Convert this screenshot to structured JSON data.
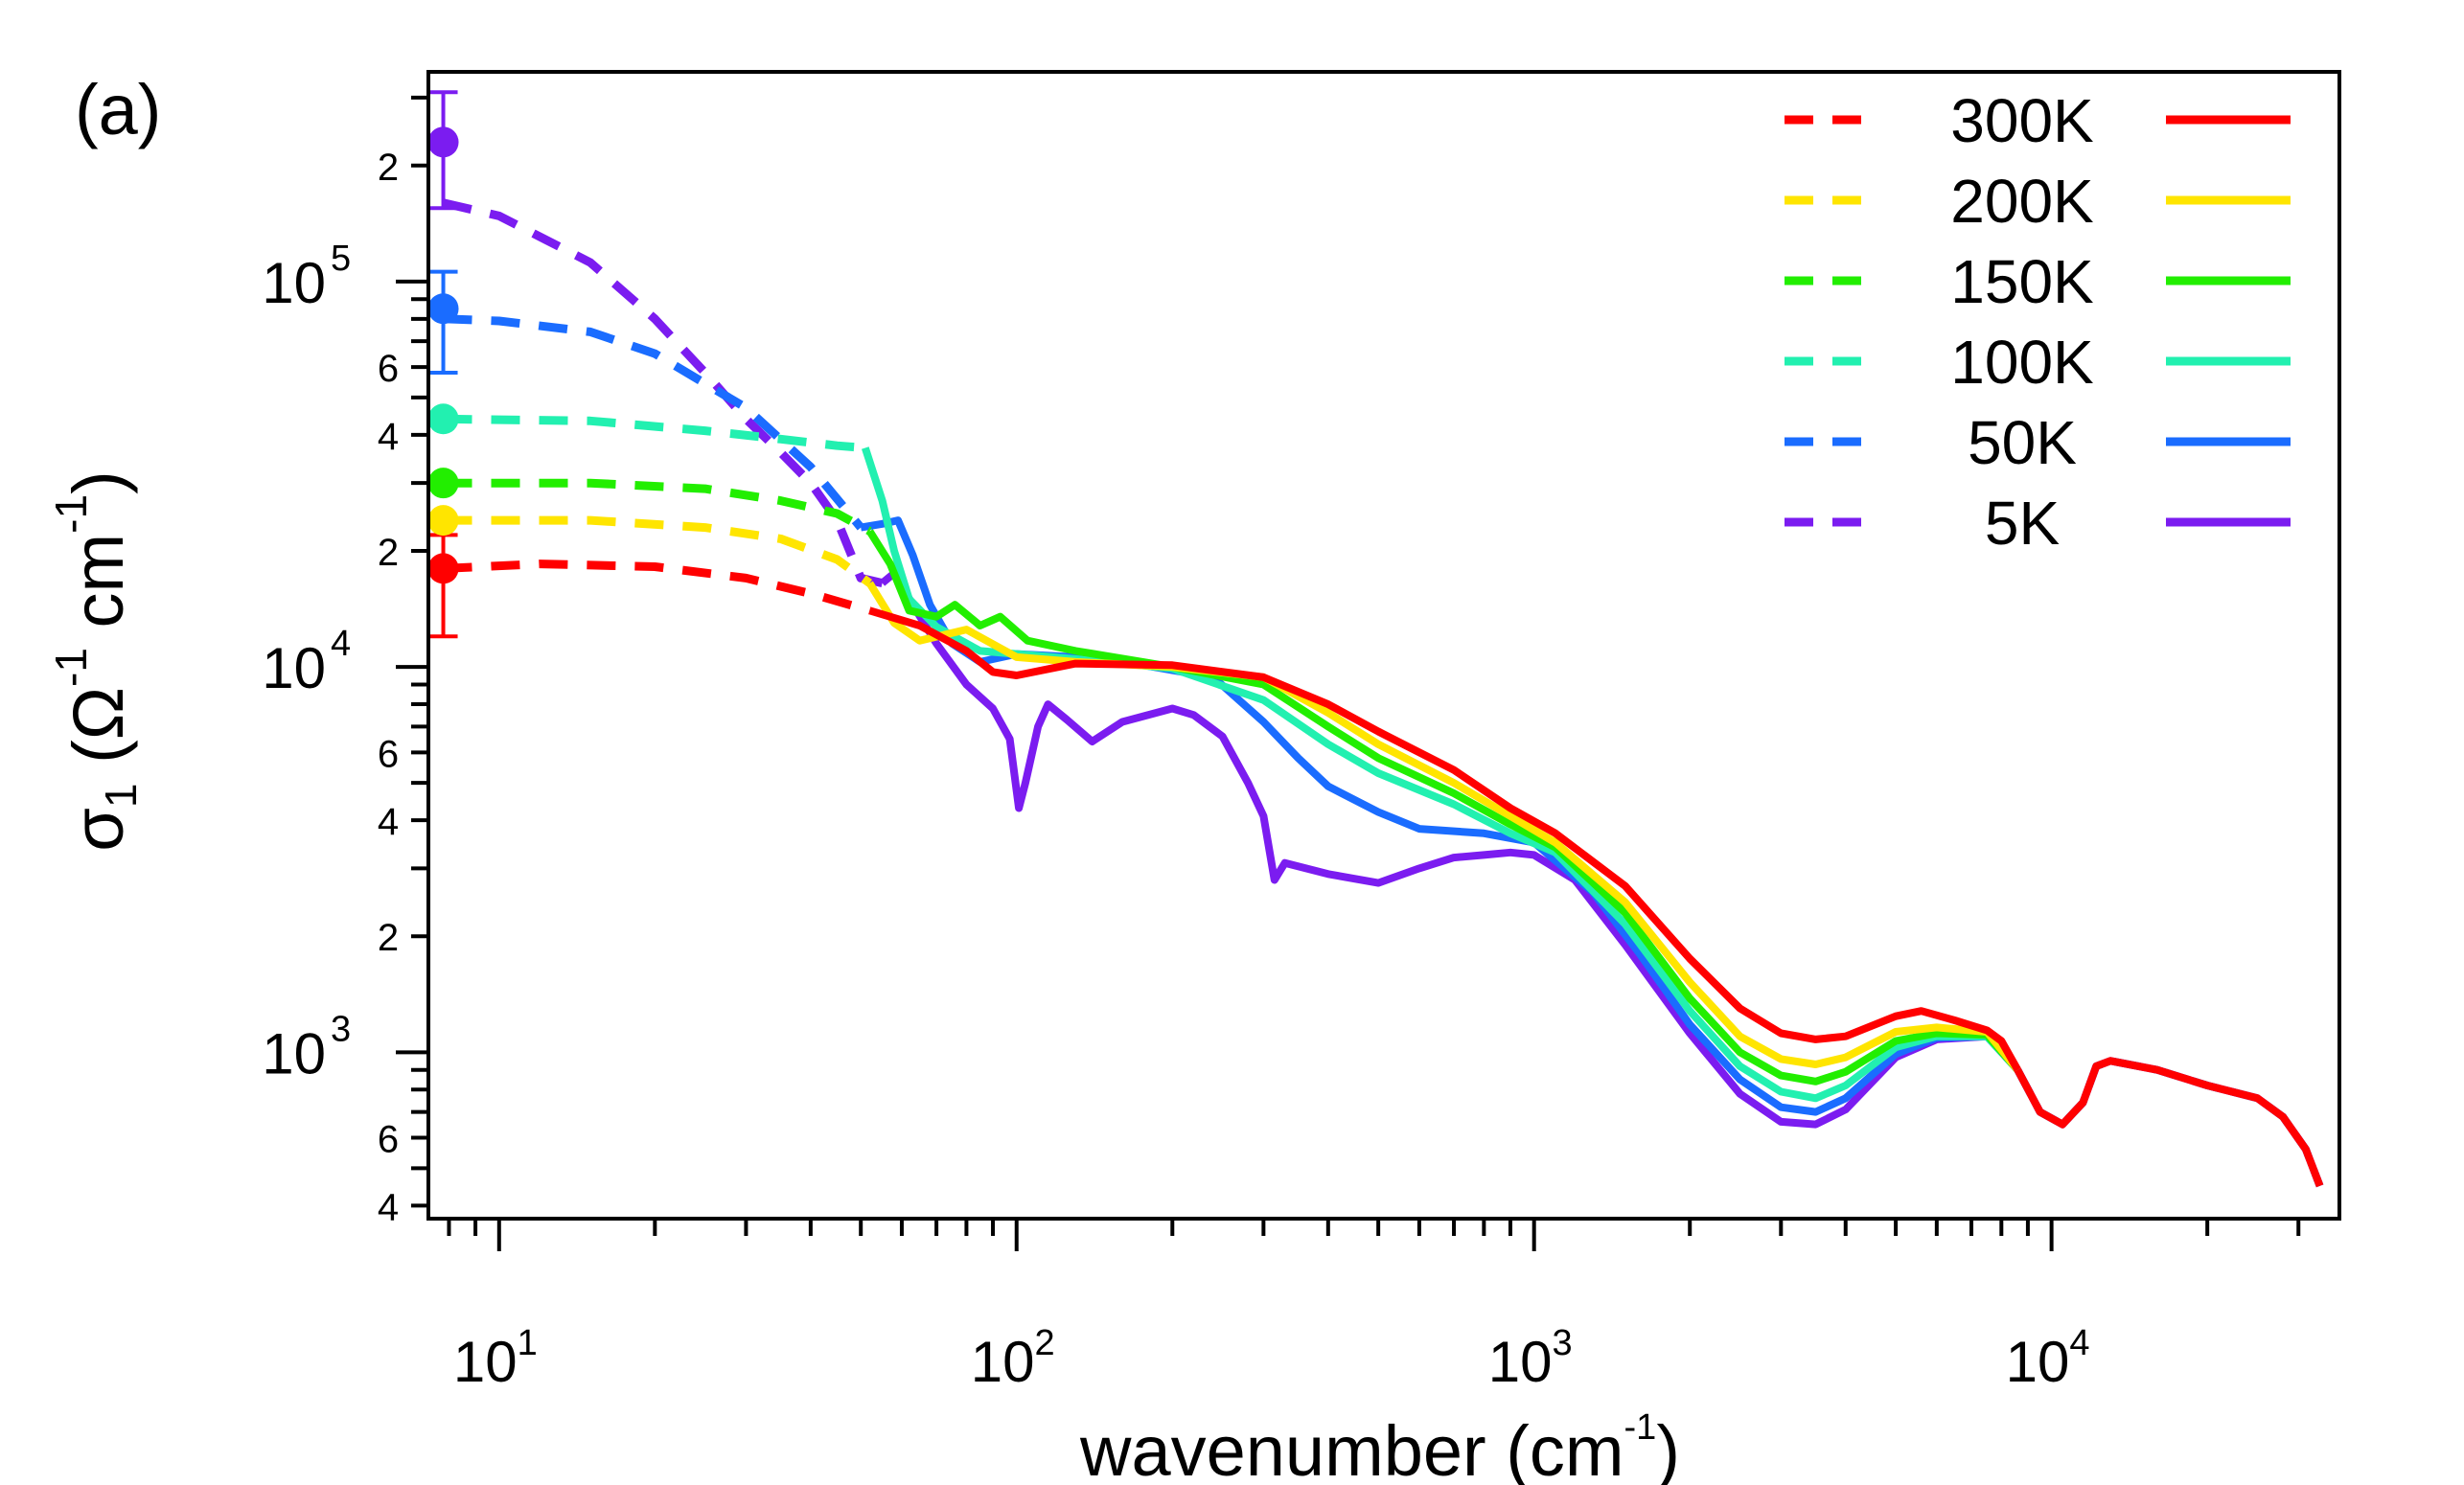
{
  "chart_data": {
    "type": "line",
    "panel_label": "(a)",
    "xscale": "log",
    "yscale": "log",
    "xlim": [
      7.3,
      36000
    ],
    "ylim": [
      370,
      350000
    ],
    "xlabel": {
      "base": "wavenumber (cm",
      "exponent": "-1",
      "close": ")"
    },
    "ylabel": {
      "symbol": "σ",
      "subscript": "1",
      "text": " (Ω",
      "exp1": "-1",
      "mid": " cm",
      "exp2": "-1",
      "close": ")"
    },
    "x_major_ticks": [
      {
        "value": 10,
        "base": "10",
        "exp": "1"
      },
      {
        "value": 100,
        "base": "10",
        "exp": "2"
      },
      {
        "value": 1000,
        "base": "10",
        "exp": "3"
      },
      {
        "value": 10000,
        "base": "10",
        "exp": "4"
      }
    ],
    "y_major_ticks": [
      {
        "value": 1000,
        "base": "10",
        "exp": "3"
      },
      {
        "value": 10000,
        "base": "10",
        "exp": "4"
      },
      {
        "value": 100000,
        "base": "10",
        "exp": "5"
      }
    ],
    "y_minor_labels": [
      {
        "value": 400,
        "label": "4"
      },
      {
        "value": 600,
        "label": "6"
      },
      {
        "value": 2000,
        "label": "2"
      },
      {
        "value": 4000,
        "label": "4"
      },
      {
        "value": 6000,
        "label": "6"
      },
      {
        "value": 20000,
        "label": "2"
      },
      {
        "value": 40000,
        "label": "4"
      },
      {
        "value": 60000,
        "label": "6"
      },
      {
        "value": 200000,
        "label": "2"
      }
    ],
    "legend_position": "top-right",
    "series": [
      {
        "name": "300K",
        "color": "#ff0000",
        "dc_point": {
          "x": 7.8,
          "y": 18000,
          "err_low": 12000,
          "err_high": 22000
        },
        "extrapolation": [
          [
            7.8,
            18000
          ],
          [
            12,
            18500
          ],
          [
            20,
            18200
          ],
          [
            30,
            17000
          ],
          [
            40,
            15500
          ],
          [
            52,
            14000
          ]
        ],
        "measured": [
          [
            52,
            14000
          ],
          [
            65,
            12800
          ],
          [
            80,
            11000
          ],
          [
            90,
            9700
          ],
          [
            100,
            9500
          ],
          [
            130,
            10200
          ],
          [
            200,
            10100
          ],
          [
            300,
            9400
          ],
          [
            400,
            8000
          ],
          [
            500,
            6800
          ],
          [
            700,
            5400
          ],
          [
            900,
            4300
          ],
          [
            1100,
            3700
          ],
          [
            1500,
            2700
          ],
          [
            2000,
            1750
          ],
          [
            2500,
            1300
          ],
          [
            3000,
            1120
          ],
          [
            3500,
            1080
          ],
          [
            4000,
            1100
          ],
          [
            5000,
            1240
          ],
          [
            5600,
            1280
          ],
          [
            6500,
            1210
          ],
          [
            7500,
            1140
          ],
          [
            8000,
            1070
          ],
          [
            8600,
            900
          ]
        ],
        "uv": [
          [
            8600,
            900
          ],
          [
            9500,
            700
          ],
          [
            10500,
            650
          ],
          [
            11500,
            740
          ],
          [
            12200,
            920
          ],
          [
            13000,
            950
          ],
          [
            16000,
            900
          ],
          [
            20000,
            820
          ],
          [
            25000,
            760
          ],
          [
            28000,
            680
          ],
          [
            31000,
            560
          ],
          [
            33000,
            450
          ]
        ]
      },
      {
        "name": "200K",
        "color": "#ffe500",
        "dc_point": {
          "x": 7.8,
          "y": 24000
        },
        "extrapolation": [
          [
            7.8,
            24000
          ],
          [
            15,
            24000
          ],
          [
            25,
            23000
          ],
          [
            35,
            21500
          ],
          [
            45,
            19000
          ],
          [
            52,
            16500
          ]
        ],
        "measured": [
          [
            52,
            16500
          ],
          [
            58,
            13000
          ],
          [
            65,
            11700
          ],
          [
            80,
            12500
          ],
          [
            100,
            10600
          ],
          [
            130,
            10300
          ],
          [
            200,
            10000
          ],
          [
            300,
            9400
          ],
          [
            400,
            7600
          ],
          [
            500,
            6300
          ],
          [
            700,
            5000
          ],
          [
            900,
            4100
          ],
          [
            1100,
            3500
          ],
          [
            1500,
            2450
          ],
          [
            2000,
            1520
          ],
          [
            2500,
            1100
          ],
          [
            3000,
            960
          ],
          [
            3500,
            930
          ],
          [
            4000,
            970
          ],
          [
            5000,
            1130
          ],
          [
            6000,
            1160
          ],
          [
            7500,
            1130
          ],
          [
            8600,
            900
          ]
        ],
        "uv": null
      },
      {
        "name": "150K",
        "color": "#22ee00",
        "dc_point": {
          "x": 7.8,
          "y": 30000
        },
        "extrapolation": [
          [
            7.8,
            30000
          ],
          [
            15,
            30000
          ],
          [
            25,
            29000
          ],
          [
            35,
            27000
          ],
          [
            45,
            25000
          ],
          [
            52,
            22500
          ]
        ],
        "measured": [
          [
            52,
            22500
          ],
          [
            57,
            18500
          ],
          [
            62,
            14000
          ],
          [
            70,
            13500
          ],
          [
            76,
            14500
          ],
          [
            85,
            12800
          ],
          [
            93,
            13500
          ],
          [
            105,
            11700
          ],
          [
            130,
            11000
          ],
          [
            200,
            10000
          ],
          [
            300,
            9000
          ],
          [
            400,
            7000
          ],
          [
            500,
            5800
          ],
          [
            700,
            4700
          ],
          [
            900,
            3900
          ],
          [
            1100,
            3400
          ],
          [
            1500,
            2300
          ],
          [
            2000,
            1380
          ],
          [
            2500,
            1000
          ],
          [
            3000,
            870
          ],
          [
            3500,
            840
          ],
          [
            4000,
            890
          ],
          [
            5000,
            1070
          ],
          [
            6000,
            1120
          ],
          [
            7500,
            1110
          ],
          [
            8600,
            900
          ]
        ],
        "uv": null
      },
      {
        "name": "100K",
        "color": "#22f0b0",
        "dc_point": {
          "x": 7.8,
          "y": 44000
        },
        "extrapolation": [
          [
            7.8,
            44000
          ],
          [
            15,
            43500
          ],
          [
            25,
            41000
          ],
          [
            35,
            39000
          ],
          [
            45,
            37500
          ],
          [
            51,
            37000
          ]
        ],
        "measured": [
          [
            51,
            37000
          ],
          [
            55,
            27000
          ],
          [
            58,
            20000
          ],
          [
            62,
            15000
          ],
          [
            70,
            12700
          ],
          [
            85,
            11000
          ],
          [
            100,
            10800
          ],
          [
            150,
            10300
          ],
          [
            200,
            9900
          ],
          [
            300,
            8200
          ],
          [
            400,
            6300
          ],
          [
            500,
            5300
          ],
          [
            700,
            4400
          ],
          [
            900,
            3700
          ],
          [
            1100,
            3300
          ],
          [
            1500,
            2150
          ],
          [
            2000,
            1280
          ],
          [
            2500,
            920
          ],
          [
            3000,
            790
          ],
          [
            3500,
            760
          ],
          [
            4000,
            820
          ],
          [
            5000,
            1030
          ],
          [
            6000,
            1100
          ],
          [
            7500,
            1100
          ],
          [
            8600,
            900
          ]
        ],
        "uv": null
      },
      {
        "name": "50K",
        "color": "#1a6cff",
        "dc_point": {
          "x": 7.8,
          "y": 85000,
          "err_low": 58000,
          "err_high": 106000
        },
        "extrapolation": [
          [
            7.8,
            80000
          ],
          [
            10,
            79000
          ],
          [
            15,
            74000
          ],
          [
            20,
            65000
          ],
          [
            30,
            47000
          ],
          [
            40,
            33000
          ],
          [
            50,
            23000
          ]
        ],
        "measured": [
          [
            50,
            23000
          ],
          [
            55,
            23500
          ],
          [
            59,
            24000
          ],
          [
            63,
            19500
          ],
          [
            68,
            14500
          ],
          [
            75,
            11500
          ],
          [
            85,
            10300
          ],
          [
            100,
            10800
          ],
          [
            150,
            10500
          ],
          [
            200,
            9800
          ],
          [
            240,
            9400
          ],
          [
            300,
            7200
          ],
          [
            350,
            5800
          ],
          [
            400,
            4900
          ],
          [
            500,
            4200
          ],
          [
            600,
            3800
          ],
          [
            800,
            3700
          ],
          [
            1000,
            3500
          ],
          [
            1300,
            2600
          ],
          [
            1600,
            1800
          ],
          [
            2000,
            1180
          ],
          [
            2500,
            850
          ],
          [
            3000,
            720
          ],
          [
            3500,
            700
          ],
          [
            4000,
            760
          ],
          [
            5000,
            990
          ],
          [
            6000,
            1090
          ],
          [
            7500,
            1100
          ],
          [
            8600,
            900
          ]
        ],
        "uv": [
          [
            8600,
            900
          ],
          [
            9500,
            700
          ],
          [
            10500,
            650
          ],
          [
            11500,
            740
          ],
          [
            12200,
            920
          ],
          [
            13000,
            950
          ],
          [
            16000,
            900
          ],
          [
            20000,
            820
          ],
          [
            25000,
            760
          ],
          [
            28000,
            680
          ],
          [
            31000,
            560
          ],
          [
            33000,
            450
          ]
        ]
      },
      {
        "name": "5K",
        "color": "#7b1cf0",
        "dc_point": {
          "x": 7.8,
          "y": 230000,
          "err_low": 155000,
          "err_high": 310000
        },
        "extrapolation": [
          [
            7.8,
            160000
          ],
          [
            10,
            148000
          ],
          [
            15,
            112000
          ],
          [
            20,
            80000
          ],
          [
            25,
            58000
          ],
          [
            30,
            44000
          ],
          [
            35,
            36000
          ],
          [
            40,
            30000
          ],
          [
            45,
            24000
          ],
          [
            50,
            17000
          ],
          [
            55,
            16500
          ]
        ],
        "measured": [
          [
            55,
            16500
          ],
          [
            58,
            17500
          ],
          [
            63,
            14500
          ],
          [
            70,
            11500
          ],
          [
            80,
            9000
          ],
          [
            90,
            7800
          ],
          [
            97,
            6500
          ],
          [
            101,
            4300
          ],
          [
            104,
            5000
          ],
          [
            110,
            7000
          ],
          [
            115,
            8000
          ],
          [
            125,
            7300
          ],
          [
            140,
            6400
          ],
          [
            160,
            7200
          ],
          [
            200,
            7800
          ],
          [
            220,
            7500
          ],
          [
            250,
            6600
          ],
          [
            280,
            5000
          ],
          [
            300,
            4100
          ],
          [
            315,
            2800
          ],
          [
            330,
            3100
          ],
          [
            400,
            2900
          ],
          [
            500,
            2750
          ],
          [
            600,
            3000
          ],
          [
            700,
            3200
          ],
          [
            800,
            3250
          ],
          [
            900,
            3300
          ],
          [
            1000,
            3250
          ],
          [
            1200,
            2800
          ],
          [
            1500,
            1900
          ],
          [
            2000,
            1120
          ],
          [
            2500,
            780
          ],
          [
            3000,
            660
          ],
          [
            3500,
            650
          ],
          [
            4000,
            710
          ],
          [
            5000,
            970
          ],
          [
            6000,
            1080
          ],
          [
            7500,
            1100
          ],
          [
            8600,
            900
          ]
        ],
        "uv": [
          [
            8600,
            900
          ],
          [
            9500,
            700
          ],
          [
            10500,
            650
          ],
          [
            11500,
            740
          ],
          [
            12200,
            920
          ],
          [
            13000,
            950
          ],
          [
            16000,
            900
          ],
          [
            20000,
            820
          ],
          [
            25000,
            760
          ],
          [
            28000,
            680
          ],
          [
            31000,
            560
          ],
          [
            33000,
            450
          ]
        ]
      }
    ]
  }
}
